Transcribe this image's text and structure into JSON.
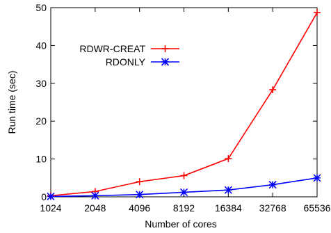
{
  "chart_data": {
    "type": "line",
    "title": "",
    "xlabel": "Number of cores",
    "ylabel": "Run time (sec)",
    "x_scale": "log2",
    "categories": [
      "1024",
      "2048",
      "4096",
      "8192",
      "16384",
      "32768",
      "65536"
    ],
    "x": [
      1024,
      2048,
      4096,
      8192,
      16384,
      32768,
      65536
    ],
    "ylim": [
      0,
      50
    ],
    "yticks": [
      0,
      10,
      20,
      30,
      40,
      50
    ],
    "grid": false,
    "legend_position": "top-left",
    "series": [
      {
        "name": "RDWR-CREAT",
        "color": "#ff0000",
        "marker": "plus",
        "values": [
          0.3,
          1.4,
          4.0,
          5.6,
          10.1,
          28.3,
          48.7
        ]
      },
      {
        "name": "RDONLY",
        "color": "#0000ff",
        "marker": "star",
        "values": [
          0.1,
          0.3,
          0.6,
          1.2,
          1.8,
          3.2,
          5.0
        ]
      }
    ]
  }
}
